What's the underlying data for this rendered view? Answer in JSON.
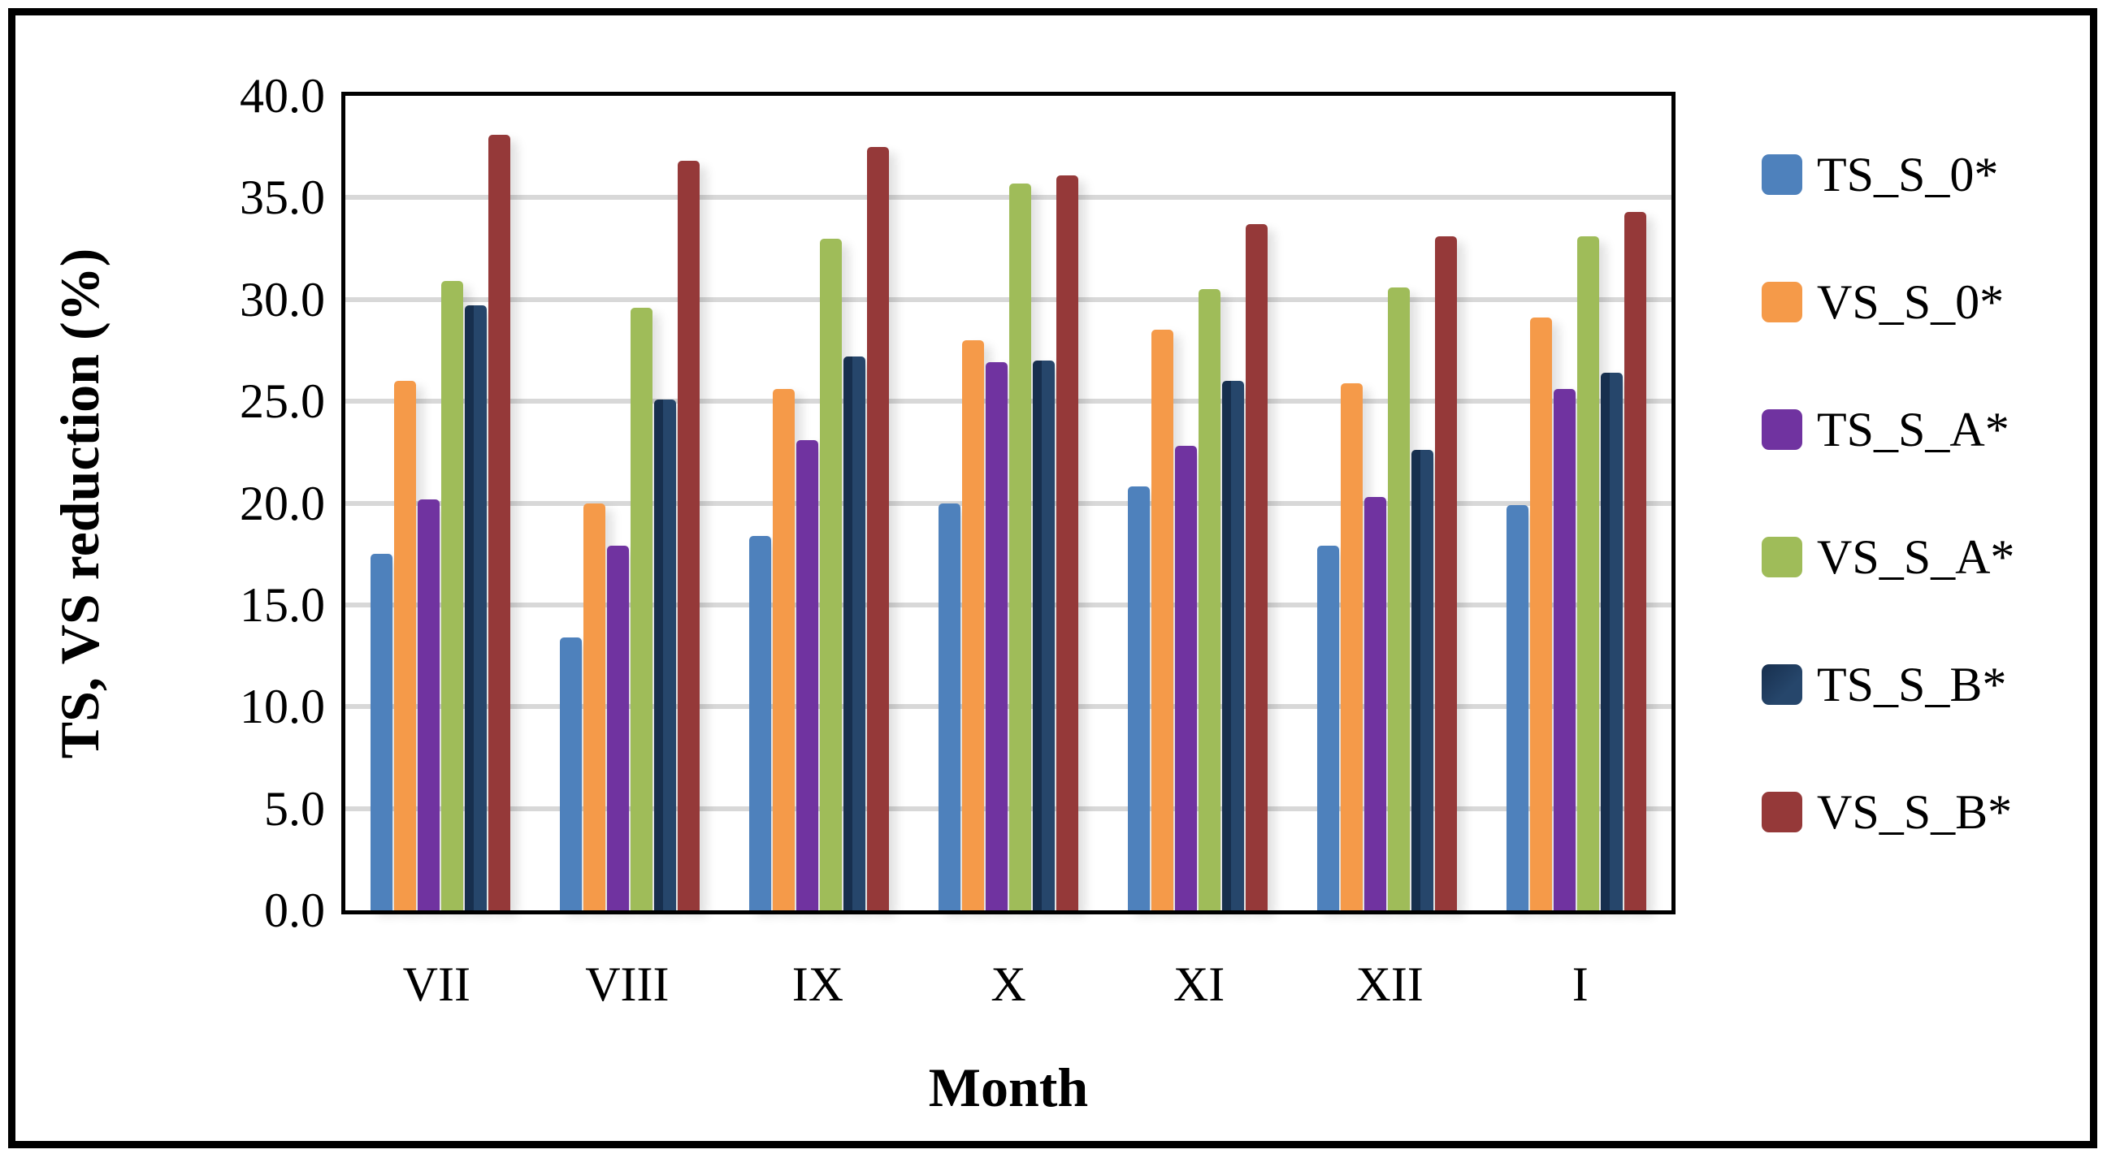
{
  "chart_data": {
    "type": "bar",
    "title": "",
    "xlabel": "Month",
    "ylabel": "TS, VS reduction (%)",
    "ylim": [
      0,
      40
    ],
    "ytick_step": 5,
    "yticks": [
      "0.0",
      "5.0",
      "10.0",
      "15.0",
      "20.0",
      "25.0",
      "30.0",
      "35.0",
      "40.0"
    ],
    "grid": true,
    "gridline_color": "#d8d8d8",
    "legend_position": "right",
    "categories": [
      "VII",
      "VIII",
      "IX",
      "X",
      "XI",
      "XII",
      "I"
    ],
    "series": [
      {
        "name": "TS_S_0*",
        "color": "#4e81bc",
        "values": [
          17.5,
          13.4,
          18.4,
          20.0,
          20.8,
          17.9,
          19.9
        ]
      },
      {
        "name": "VS_S_0*",
        "color": "#f59a49",
        "values": [
          26.0,
          20.0,
          25.6,
          28.0,
          28.5,
          25.9,
          29.1
        ]
      },
      {
        "name": "TS_S_A*",
        "color": "#7033a0",
        "values": [
          20.2,
          17.9,
          23.1,
          26.9,
          22.8,
          20.3,
          25.6
        ]
      },
      {
        "name": "VS_S_A*",
        "color": "#9fbc59",
        "values": [
          30.9,
          29.6,
          33.0,
          35.7,
          30.5,
          30.6,
          33.1
        ]
      },
      {
        "name": "TS_S_B*",
        "color": "#26466b",
        "color_edge": "#172f4e",
        "values": [
          29.7,
          25.1,
          27.2,
          27.0,
          26.0,
          22.6,
          26.4
        ]
      },
      {
        "name": "VS_S_B*",
        "color": "#953939",
        "values": [
          38.1,
          36.8,
          37.5,
          36.1,
          33.7,
          33.1,
          34.3
        ]
      }
    ]
  }
}
